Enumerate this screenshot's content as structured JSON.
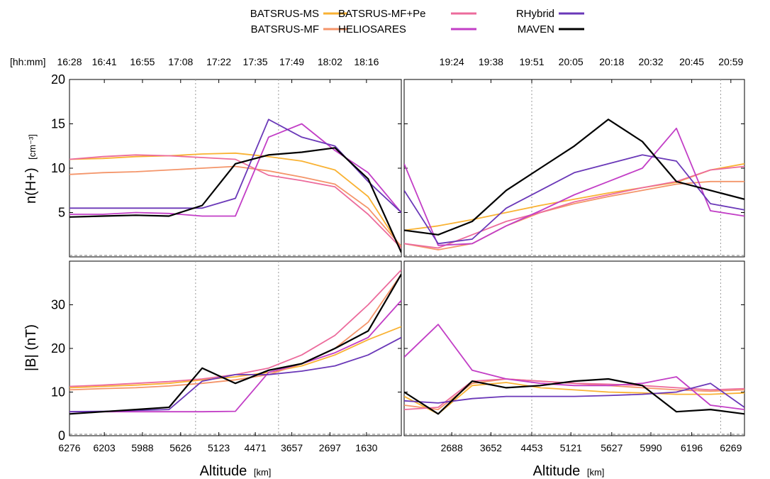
{
  "colors": {
    "BATSRUS-MS": "#f9b233",
    "BATSRUS-MF": "#f4956a",
    "BATSRUS-MF+Pe": "#ec6b9c",
    "HELIOSARES": "#c23ec6",
    "RHybrid": "#6a38b8",
    "MAVEN": "#000000"
  },
  "legend": {
    "items": [
      "BATSRUS-MS",
      "BATSRUS-MF",
      "BATSRUS-MF+Pe",
      "HELIOSARES",
      "RHybrid",
      "MAVEN"
    ]
  },
  "time_axis_label": "[hh:mm]",
  "ylabel_density": "n(H+)",
  "ylabel_density_unit": "[cm⁻³]",
  "ylabel_field": "|B| (nT)",
  "xlabel": "Altitude",
  "xlabel_unit": "[km]",
  "chart_data": [
    {
      "type": "line",
      "panel": "density-left",
      "ylabel": "n(H+) [cm⁻³]",
      "ylim": [
        0,
        20
      ],
      "yticks": [
        5,
        10,
        15,
        20
      ],
      "time_ticks": [
        "16:28",
        "16:41",
        "16:55",
        "17:08",
        "17:22",
        "17:35",
        "17:49",
        "18:02",
        "18:16"
      ],
      "x": [
        0,
        10,
        20,
        30,
        40,
        50,
        60,
        70,
        80,
        90,
        100
      ],
      "series": [
        {
          "name": "BATSRUS-MS",
          "values": [
            11.0,
            11.1,
            11.3,
            11.4,
            11.6,
            11.7,
            11.3,
            10.8,
            9.8,
            6.8,
            1.0
          ]
        },
        {
          "name": "BATSRUS-MF",
          "values": [
            9.3,
            9.5,
            9.6,
            9.8,
            10.0,
            10.2,
            9.7,
            9.0,
            8.2,
            5.5,
            1.2
          ]
        },
        {
          "name": "BATSRUS-MF+Pe",
          "values": [
            11.0,
            11.3,
            11.5,
            11.4,
            11.2,
            11.0,
            9.2,
            8.6,
            7.9,
            4.8,
            1.0
          ]
        },
        {
          "name": "HELIOSARES",
          "values": [
            4.8,
            4.8,
            5.0,
            4.9,
            4.6,
            4.6,
            13.5,
            15.0,
            12.0,
            9.5,
            5.0
          ]
        },
        {
          "name": "RHybrid",
          "values": [
            5.5,
            5.5,
            5.5,
            5.5,
            5.5,
            6.6,
            15.5,
            13.5,
            12.5,
            8.5,
            5.0
          ]
        },
        {
          "name": "MAVEN",
          "values": [
            4.5,
            4.6,
            4.7,
            4.6,
            5.8,
            10.5,
            11.5,
            11.8,
            12.3,
            8.8,
            0.5
          ]
        }
      ]
    },
    {
      "type": "line",
      "panel": "density-right",
      "ylim": [
        0,
        20
      ],
      "yticks": [
        5,
        10,
        15,
        20
      ],
      "time_ticks": [
        "19:24",
        "19:38",
        "19:51",
        "20:05",
        "20:18",
        "20:32",
        "20:45",
        "20:59"
      ],
      "x": [
        0,
        10,
        20,
        30,
        40,
        50,
        60,
        70,
        80,
        90,
        100
      ],
      "series": [
        {
          "name": "BATSRUS-MS",
          "values": [
            3.0,
            3.5,
            4.2,
            5.0,
            5.8,
            6.5,
            7.2,
            7.8,
            8.4,
            9.8,
            10.5
          ]
        },
        {
          "name": "BATSRUS-MF",
          "values": [
            1.5,
            0.8,
            1.5,
            3.5,
            5.0,
            6.0,
            6.8,
            7.5,
            8.2,
            8.5,
            8.5
          ]
        },
        {
          "name": "BATSRUS-MF+Pe",
          "values": [
            1.5,
            1.0,
            2.5,
            4.0,
            5.0,
            6.2,
            7.0,
            7.8,
            8.5,
            9.8,
            10.2
          ]
        },
        {
          "name": "HELIOSARES",
          "values": [
            10.5,
            1.3,
            1.5,
            3.5,
            5.2,
            7.0,
            8.5,
            10.0,
            14.5,
            5.2,
            4.6
          ]
        },
        {
          "name": "RHybrid",
          "values": [
            7.5,
            1.5,
            2.0,
            5.5,
            7.5,
            9.5,
            10.5,
            11.5,
            10.8,
            6.0,
            5.3
          ]
        },
        {
          "name": "MAVEN",
          "values": [
            3.0,
            2.5,
            4.0,
            7.5,
            10.0,
            12.5,
            15.5,
            13.0,
            8.5,
            7.5,
            6.5
          ]
        }
      ]
    },
    {
      "type": "line",
      "panel": "field-left",
      "ylabel": "|B| (nT)",
      "ylim": [
        0,
        40
      ],
      "yticks": [
        0,
        10,
        20,
        30
      ],
      "xticks": [
        "6276",
        "6203",
        "5988",
        "5626",
        "5123",
        "4471",
        "3657",
        "2697",
        "1630"
      ],
      "x": [
        0,
        10,
        20,
        30,
        40,
        50,
        60,
        70,
        80,
        90,
        100
      ],
      "series": [
        {
          "name": "BATSRUS-MS",
          "values": [
            11.0,
            11.3,
            11.6,
            12.0,
            12.8,
            13.5,
            14.5,
            16.0,
            18.5,
            22.0,
            25.0
          ]
        },
        {
          "name": "BATSRUS-MF",
          "values": [
            10.5,
            10.8,
            11.0,
            11.4,
            12.0,
            12.8,
            14.0,
            16.5,
            20.0,
            26.0,
            37.0
          ]
        },
        {
          "name": "BATSRUS-MF+Pe",
          "values": [
            11.3,
            11.6,
            12.0,
            12.4,
            13.0,
            14.0,
            15.5,
            18.5,
            23.0,
            30.0,
            38.0
          ]
        },
        {
          "name": "HELIOSARES",
          "values": [
            5.5,
            5.5,
            5.5,
            5.5,
            5.5,
            5.6,
            14.5,
            16.5,
            19.0,
            22.5,
            31.0
          ]
        },
        {
          "name": "RHybrid",
          "values": [
            5.5,
            5.6,
            5.8,
            6.0,
            12.5,
            14.0,
            14.0,
            14.8,
            16.0,
            18.5,
            22.5
          ]
        },
        {
          "name": "MAVEN",
          "values": [
            5.0,
            5.5,
            6.0,
            6.5,
            15.5,
            12.0,
            15.0,
            16.5,
            20.0,
            24.0,
            37.0
          ]
        }
      ]
    },
    {
      "type": "line",
      "panel": "field-right",
      "ylim": [
        0,
        40
      ],
      "yticks": [
        0,
        10,
        20,
        30
      ],
      "xticks": [
        "2688",
        "3652",
        "4453",
        "5121",
        "5627",
        "5990",
        "6196",
        "6269"
      ],
      "x": [
        0,
        10,
        20,
        30,
        40,
        50,
        60,
        70,
        80,
        90,
        100
      ],
      "series": [
        {
          "name": "BATSRUS-MS",
          "values": [
            9.0,
            5.0,
            11.5,
            12.2,
            11.0,
            10.5,
            10.0,
            9.8,
            9.5,
            9.5,
            9.8
          ]
        },
        {
          "name": "BATSRUS-MF",
          "values": [
            7.0,
            6.0,
            12.0,
            13.0,
            12.5,
            12.0,
            11.5,
            11.0,
            10.5,
            10.2,
            10.5
          ]
        },
        {
          "name": "BATSRUS-MF+Pe",
          "values": [
            6.0,
            6.5,
            12.5,
            13.0,
            12.5,
            12.0,
            11.8,
            11.5,
            11.0,
            10.5,
            10.8
          ]
        },
        {
          "name": "HELIOSARES",
          "values": [
            18.0,
            25.5,
            15.0,
            13.0,
            12.0,
            11.5,
            11.5,
            12.0,
            13.5,
            7.0,
            6.0
          ]
        },
        {
          "name": "RHybrid",
          "values": [
            8.0,
            7.5,
            8.5,
            9.0,
            9.0,
            9.0,
            9.2,
            9.5,
            10.0,
            12.0,
            6.5
          ]
        },
        {
          "name": "MAVEN",
          "values": [
            10.0,
            5.0,
            12.5,
            11.0,
            11.5,
            12.5,
            13.0,
            11.5,
            5.5,
            6.0,
            5.0
          ]
        }
      ]
    }
  ]
}
